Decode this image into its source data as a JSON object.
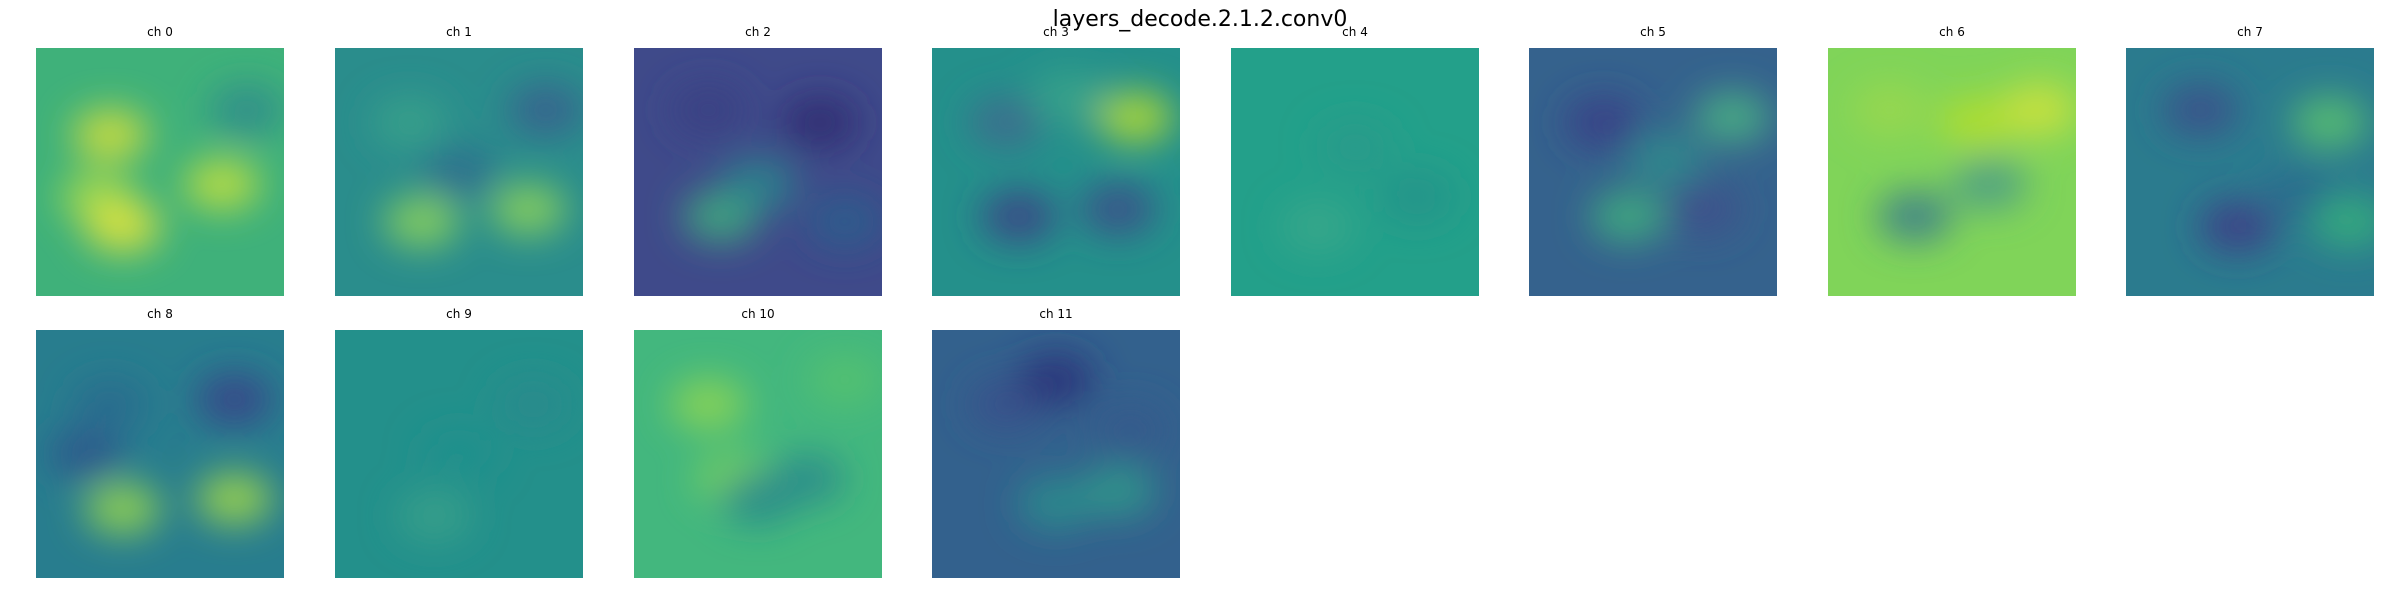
{
  "title": "layers_decode.2.1.2.conv0",
  "panels": [
    {
      "label": "ch 0",
      "bg": "#3fb17a",
      "spots": [
        [
          "#d8e13a",
          0.3,
          0.35
        ],
        [
          "#a8dc4a",
          0.25,
          0.6
        ],
        [
          "#c7e23c",
          0.75,
          0.55
        ],
        [
          "#e9e63a",
          0.35,
          0.72
        ],
        [
          "#2e8a8d",
          0.85,
          0.25
        ]
      ]
    },
    {
      "label": "ch 1",
      "bg": "#2a8d8c",
      "spots": [
        [
          "#3aa28a",
          0.3,
          0.3
        ],
        [
          "#3b5e8e",
          0.85,
          0.25
        ],
        [
          "#8fd55a",
          0.35,
          0.7
        ],
        [
          "#8fd55a",
          0.78,
          0.65
        ],
        [
          "#2f6d8e",
          0.5,
          0.5
        ]
      ]
    },
    {
      "label": "ch 2",
      "bg": "#3f4a8a",
      "spots": [
        [
          "#2e2a70",
          0.75,
          0.3
        ],
        [
          "#3a3e82",
          0.3,
          0.25
        ],
        [
          "#3fb07c",
          0.35,
          0.68
        ],
        [
          "#2c8a8c",
          0.5,
          0.55
        ],
        [
          "#2a5f8c",
          0.85,
          0.7
        ]
      ]
    },
    {
      "label": "ch 3",
      "bg": "#24908b",
      "spots": [
        [
          "#3e6a8e",
          0.3,
          0.3
        ],
        [
          "#b8de2e",
          0.82,
          0.28
        ],
        [
          "#3c3f86",
          0.35,
          0.68
        ],
        [
          "#3c4b8a",
          0.75,
          0.65
        ],
        [
          "#3aa58a",
          0.55,
          0.2
        ]
      ]
    },
    {
      "label": "ch 4",
      "bg": "#23a08a",
      "spots": [
        [
          "#2a9a8b",
          0.5,
          0.4
        ],
        [
          "#3aa88a",
          0.35,
          0.72
        ],
        [
          "#239389",
          0.75,
          0.6
        ]
      ]
    },
    {
      "label": "ch 5",
      "bg": "#35628d",
      "spots": [
        [
          "#3b3c86",
          0.3,
          0.3
        ],
        [
          "#4ab583",
          0.82,
          0.28
        ],
        [
          "#40b27e",
          0.4,
          0.68
        ],
        [
          "#3e4f8b",
          0.7,
          0.65
        ],
        [
          "#2d8f8c",
          0.55,
          0.45
        ]
      ]
    },
    {
      "label": "ch 6",
      "bg": "#80d459",
      "spots": [
        [
          "#b5de2c",
          0.6,
          0.3
        ],
        [
          "#d4e33a",
          0.85,
          0.25
        ],
        [
          "#3a7a8e",
          0.35,
          0.68
        ],
        [
          "#4a9a88",
          0.65,
          0.55
        ],
        [
          "#9bd84c",
          0.25,
          0.25
        ]
      ]
    },
    {
      "label": "ch 7",
      "bg": "#2b7b8e",
      "spots": [
        [
          "#3d4c89",
          0.3,
          0.25
        ],
        [
          "#5cc46e",
          0.82,
          0.3
        ],
        [
          "#403b86",
          0.45,
          0.72
        ],
        [
          "#2a6a8d",
          0.7,
          0.6
        ],
        [
          "#35b27b",
          0.9,
          0.7
        ]
      ]
    },
    {
      "label": "ch 8",
      "bg": "#287d8e",
      "spots": [
        [
          "#3a3f88",
          0.8,
          0.28
        ],
        [
          "#2c6a8e",
          0.3,
          0.3
        ],
        [
          "#9ad84e",
          0.35,
          0.72
        ],
        [
          "#a5db48",
          0.8,
          0.68
        ],
        [
          "#30568c",
          0.2,
          0.5
        ]
      ]
    },
    {
      "label": "ch 9",
      "bg": "#23908b",
      "spots": [
        [
          "#21918c",
          0.5,
          0.5
        ],
        [
          "#2a8a8c",
          0.8,
          0.3
        ],
        [
          "#3aa18a",
          0.4,
          0.75
        ]
      ]
    },
    {
      "label": "ch 10",
      "bg": "#43b77e",
      "spots": [
        [
          "#7dd25b",
          0.4,
          0.6
        ],
        [
          "#8fd652",
          0.3,
          0.3
        ],
        [
          "#24868e",
          0.5,
          0.68
        ],
        [
          "#2b8a8c",
          0.7,
          0.6
        ],
        [
          "#56c26e",
          0.85,
          0.2
        ]
      ]
    },
    {
      "label": "ch 11",
      "bg": "#33618d",
      "spots": [
        [
          "#3a4f8b",
          0.3,
          0.3
        ],
        [
          "#2c2f78",
          0.5,
          0.2
        ],
        [
          "#2a8f8c",
          0.5,
          0.7
        ],
        [
          "#2e9b8a",
          0.75,
          0.65
        ],
        [
          "#355a8c",
          0.8,
          0.4
        ]
      ]
    }
  ]
}
